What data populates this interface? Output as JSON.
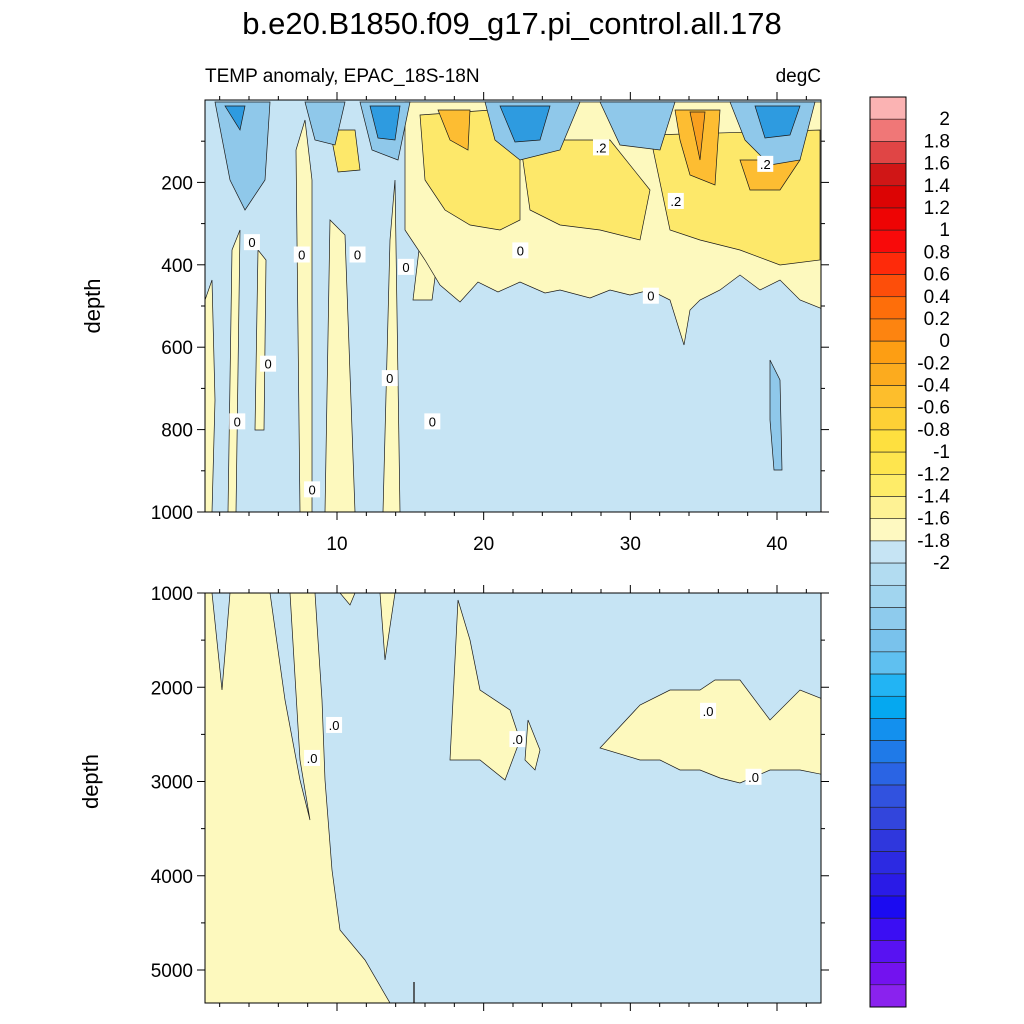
{
  "title": "b.e20.B1850.f09_g17.pi_control.all.178",
  "subtitle_left": "TEMP anomaly, EPAC_18S-18N",
  "subtitle_right": "degC",
  "colors": {
    "neg_fill": "#c6e4f4",
    "pos_fill": "#fdf9be",
    "pos_mid": "#fde86a",
    "pos_strong": "#fdbd32",
    "pos_max": "#f9a01f",
    "neg_mid": "#8fc8ea",
    "neg_strong": "#2e9be0"
  },
  "chart_data": [
    {
      "type": "contour",
      "panel": "upper",
      "xlabel": "",
      "ylabel": "depth",
      "xlim": [
        1,
        43
      ],
      "ylim": [
        1000,
        0
      ],
      "xticks": [
        10,
        20,
        30,
        40
      ],
      "yticks": [
        200,
        400,
        600,
        800,
        1000
      ],
      "ytick_labels": [
        "200",
        "400",
        "600",
        "800",
        "1000"
      ],
      "xtick_labels": [
        "10",
        "20",
        "30",
        "40"
      ],
      "contour_labels": [
        {
          "text": "0",
          "x": 4.2,
          "y": 345
        },
        {
          "text": "0",
          "x": 7.6,
          "y": 375
        },
        {
          "text": "0",
          "x": 11.4,
          "y": 375
        },
        {
          "text": "0",
          "x": 14.7,
          "y": 405
        },
        {
          "text": "0",
          "x": 22.5,
          "y": 365
        },
        {
          "text": "0",
          "x": 5.3,
          "y": 640
        },
        {
          "text": "0",
          "x": 13.6,
          "y": 675
        },
        {
          "text": "0",
          "x": 3.2,
          "y": 780
        },
        {
          "text": "0",
          "x": 16.5,
          "y": 780
        },
        {
          "text": "0",
          "x": 8.3,
          "y": 945
        },
        {
          "text": ".2",
          "x": 28,
          "y": 115
        },
        {
          "text": ".2",
          "x": 39.2,
          "y": 155
        },
        {
          "text": ".2",
          "x": 33.1,
          "y": 245
        },
        {
          "text": "0",
          "x": 31.4,
          "y": 475
        }
      ],
      "note": "Positive (warm) anomalies concentrated in upper 300 m near x=17-20 and x=33-38; cold cores near x=14, x=22-27 and x=40"
    },
    {
      "type": "contour",
      "panel": "lower",
      "xlabel": "",
      "ylabel": "depth",
      "xlim": [
        1,
        43
      ],
      "ylim": [
        5350,
        1000
      ],
      "yticks": [
        1000,
        2000,
        3000,
        4000,
        5000
      ],
      "ytick_labels": [
        "1000",
        "2000",
        "3000",
        "4000",
        "5000"
      ],
      "contour_labels": [
        {
          "text": ".0",
          "x": 8.3,
          "y": 2750
        },
        {
          "text": ".0",
          "x": 9.8,
          "y": 2400
        },
        {
          "text": ".0",
          "x": 22.3,
          "y": 2550
        },
        {
          "text": ".0",
          "x": 35.3,
          "y": 2250
        },
        {
          "text": ".0",
          "x": 38.4,
          "y": 2950
        }
      ],
      "note": "Lower panel mostly weak negative anomaly with a positive band west of x~10 and patches near x=18-23 and x=31-43 at 2000-3000 m"
    },
    {
      "type": "colorbar",
      "levels": [
        2,
        1.8,
        1.6,
        1.4,
        1.2,
        1,
        0.8,
        0.6,
        0.4,
        0.2,
        0,
        -0.2,
        -0.4,
        -0.6,
        -0.8,
        -1,
        -1.2,
        -1.4,
        -1.6,
        -1.8,
        -2
      ],
      "level_labels": [
        "2",
        "1.8",
        "1.6",
        "1.4",
        "1.2",
        "1",
        "0.8",
        "0.6",
        "0.4",
        "0.2",
        "0",
        "-0.2",
        "-0.4",
        "-0.6",
        "-0.8",
        "-1",
        "-1.2",
        "-1.4",
        "-1.6",
        "-1.8",
        "-2"
      ],
      "box_colors": [
        "#fbb3b3",
        "#f07777",
        "#e04545",
        "#d01616",
        "#dc0404",
        "#ee0404",
        "#f80a0a",
        "#fe2a0a",
        "#fd4e0a",
        "#fe6e0a",
        "#fd8410",
        "#fd9e13",
        "#fcab1e",
        "#fdbe2c",
        "#fdd035",
        "#fee03f",
        "#fee54e",
        "#feec68",
        "#fef294",
        "#fef9c1",
        "#c6e4f4",
        "#b2dcf1",
        "#a1d5ef",
        "#8ecbed",
        "#79c2ec",
        "#5fc0f0",
        "#22b4f4",
        "#05a8f0",
        "#1390ee",
        "#1f7ae8",
        "#2a64e4",
        "#3152df",
        "#3245dc",
        "#2f37dd",
        "#2c2ae2",
        "#2a1be7",
        "#1b0bf1",
        "#3b0ef3",
        "#5812f2",
        "#7312ef",
        "#8a22ee"
      ]
    }
  ]
}
